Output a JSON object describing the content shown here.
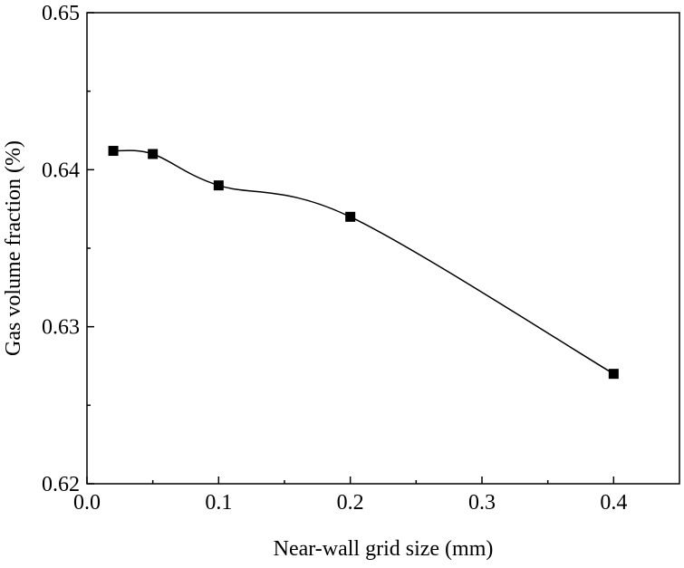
{
  "chart_data": {
    "type": "line",
    "title": "",
    "xlabel": "Near-wall grid size (mm)",
    "ylabel": "Gas volume fraction (%)",
    "xlim": [
      0.0,
      0.45
    ],
    "ylim": [
      0.62,
      0.65
    ],
    "xticks": [
      0.0,
      0.1,
      0.2,
      0.3,
      0.4
    ],
    "xtick_labels": [
      "0.0",
      "0.1",
      "0.2",
      "0.3",
      "0.4"
    ],
    "yticks": [
      0.62,
      0.63,
      0.64,
      0.65
    ],
    "ytick_labels": [
      "0.62",
      "0.63",
      "0.64",
      "0.65"
    ],
    "grid": false,
    "series": [
      {
        "name": "Gas volume fraction",
        "marker": "square",
        "line": "smooth",
        "color": "#000000",
        "x": [
          0.02,
          0.05,
          0.1,
          0.2,
          0.4
        ],
        "y": [
          0.6412,
          0.641,
          0.639,
          0.637,
          0.627
        ]
      }
    ]
  }
}
